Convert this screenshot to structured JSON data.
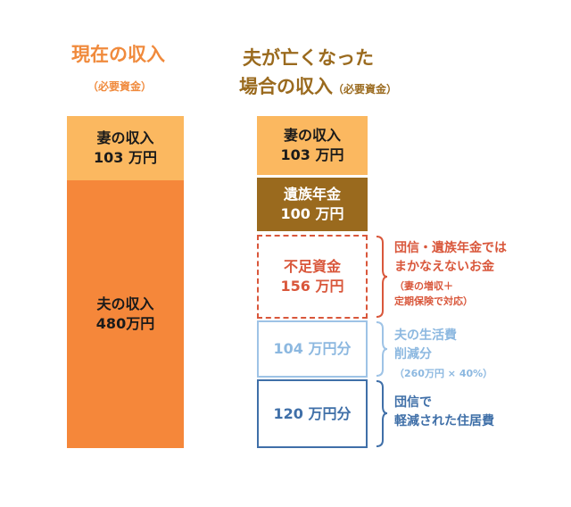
{
  "left_heading": {
    "title": "現在の収入",
    "subtitle": "（必要資金）",
    "color": "#f08a3c"
  },
  "right_heading": {
    "title_line1": "夫が亡くなった",
    "title_line2": "場合の収入",
    "subtitle": "（必要資金）",
    "color": "#9a6a1e"
  },
  "left_column": {
    "wife_income": {
      "label": "妻の収入",
      "amount": "103 万円",
      "color": "#fbb860"
    },
    "husband_income": {
      "label": "夫の収入",
      "amount": "480万円",
      "color": "#f5873a"
    }
  },
  "right_column": {
    "wife_income": {
      "label": "妻の収入",
      "amount": "103 万円",
      "color": "#fbb860"
    },
    "survivor_pension": {
      "label": "遺族年金",
      "amount": "100 万円",
      "color": "#9a6a1e"
    },
    "shortfall": {
      "label": "不足資金",
      "amount": "156 万円",
      "color": "#d9573b"
    },
    "living_cost_cut": {
      "label": "104 万円分",
      "color": "#9ec3e6"
    },
    "housing_cost_cut": {
      "label": "120 万円分",
      "color": "#3f6fa8"
    }
  },
  "notes": {
    "shortfall": {
      "line1": "団信・遺族年金では",
      "line2": "まかなえないお金",
      "small1": "（妻の増収＋",
      "small2": "定期保険で対応）"
    },
    "living_cost": {
      "line1": "夫の生活費",
      "line2": "削減分",
      "small1": "（260万円 × 40%）"
    },
    "housing_cost": {
      "line1": "団信で",
      "line2": "軽減された住居費"
    }
  }
}
